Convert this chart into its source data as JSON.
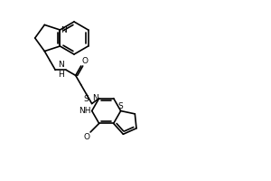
{
  "bg_color": "#ffffff",
  "line_color": "#000000",
  "lw": 1.2,
  "atoms": {
    "N_label": "N",
    "H_label": "H",
    "O_label": "O",
    "S_label": "S",
    "NH_label": "NH"
  },
  "font_size": 6.5
}
